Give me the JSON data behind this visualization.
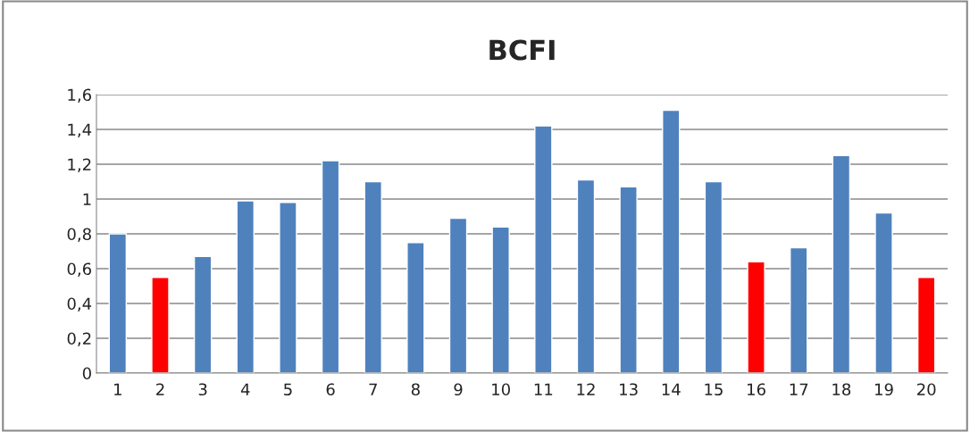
{
  "chart_data": {
    "type": "bar",
    "title": "BCFI",
    "categories": [
      "1",
      "2",
      "3",
      "4",
      "5",
      "6",
      "7",
      "8",
      "9",
      "10",
      "11",
      "12",
      "13",
      "14",
      "15",
      "16",
      "17",
      "18",
      "19",
      "20"
    ],
    "values": [
      0.8,
      0.55,
      0.67,
      0.99,
      0.98,
      1.22,
      1.1,
      0.75,
      0.89,
      0.84,
      1.42,
      1.11,
      1.07,
      1.51,
      1.1,
      0.64,
      0.72,
      1.25,
      0.92,
      0.55
    ],
    "colors": [
      "#4f81bd",
      "#ff0000",
      "#4f81bd",
      "#4f81bd",
      "#4f81bd",
      "#4f81bd",
      "#4f81bd",
      "#4f81bd",
      "#4f81bd",
      "#4f81bd",
      "#4f81bd",
      "#4f81bd",
      "#4f81bd",
      "#4f81bd",
      "#4f81bd",
      "#ff0000",
      "#4f81bd",
      "#4f81bd",
      "#4f81bd",
      "#ff0000"
    ],
    "ylim": [
      0,
      1.6
    ],
    "yticks": [
      {
        "value": 0,
        "label": "0"
      },
      {
        "value": 0.2,
        "label": "0,2"
      },
      {
        "value": 0.4,
        "label": "0,4"
      },
      {
        "value": 0.6,
        "label": "0,6"
      },
      {
        "value": 0.8,
        "label": "0,8"
      },
      {
        "value": 1,
        "label": "1"
      },
      {
        "value": 1.2,
        "label": "1,2"
      },
      {
        "value": 1.4,
        "label": "1,4"
      },
      {
        "value": 1.6,
        "label": "1,6"
      }
    ],
    "grid": "y",
    "legend": false
  }
}
